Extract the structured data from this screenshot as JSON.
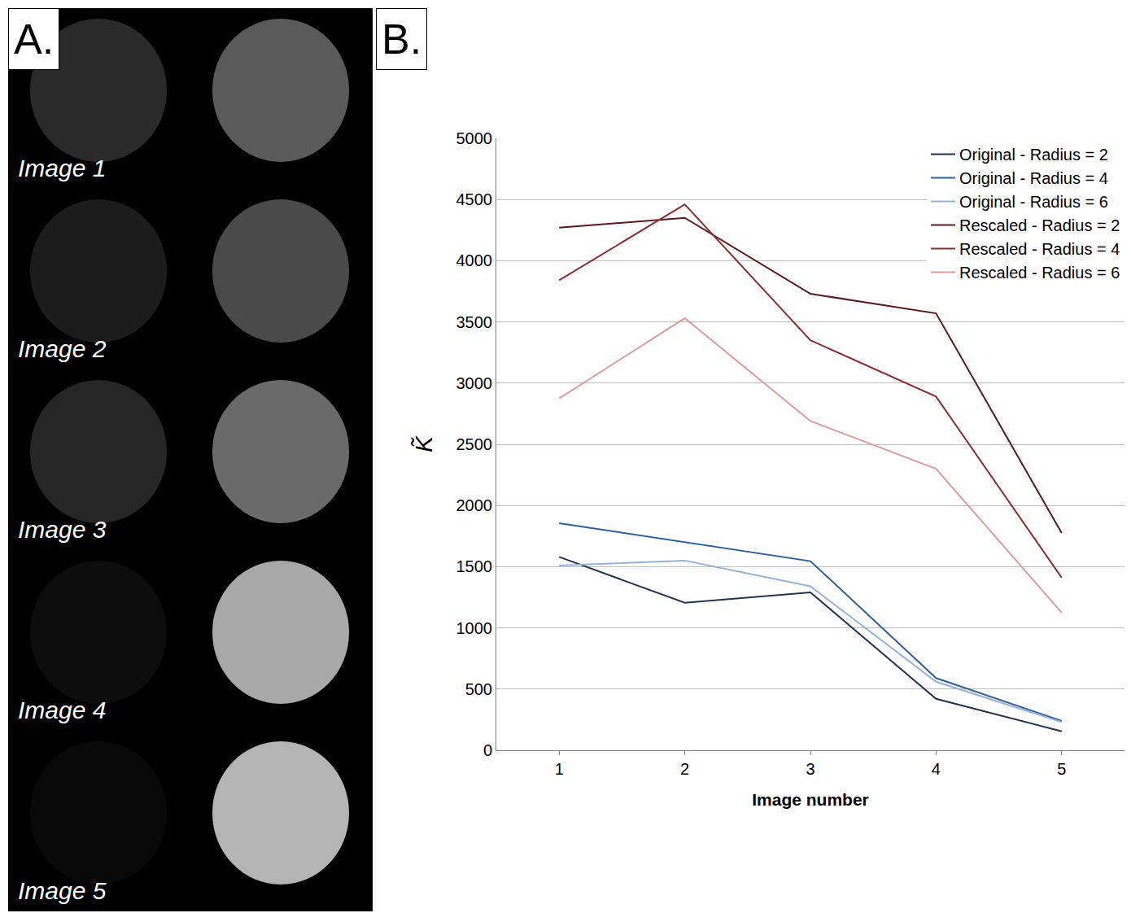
{
  "panels": {
    "A": {
      "label": "A.",
      "image_labels": [
        "Image 1",
        "Image 2",
        "Image 3",
        "Image 4",
        "Image 5"
      ]
    },
    "B": {
      "label": "B."
    }
  },
  "chart_data": {
    "type": "line",
    "x_label": "Image number",
    "y_label": "K̃",
    "x": [
      1,
      2,
      3,
      4,
      5
    ],
    "xlim": [
      0.5,
      5.5
    ],
    "xticks": [
      1,
      2,
      3,
      4,
      5
    ],
    "ylim": [
      0,
      5000
    ],
    "yticks": [
      0,
      500,
      1000,
      1500,
      2000,
      2500,
      3000,
      3500,
      4000,
      4500,
      5000
    ],
    "grid": true,
    "legend": "top right",
    "series": [
      {
        "name": "Original - Radius = 2",
        "color": "#1f3552",
        "values": [
          1580,
          1205,
          1290,
          420,
          155
        ]
      },
      {
        "name": "Original - Radius = 4",
        "color": "#30609a",
        "values": [
          1855,
          1700,
          1545,
          590,
          240
        ]
      },
      {
        "name": "Original - Radius = 6",
        "color": "#95b3d7",
        "values": [
          1510,
          1550,
          1340,
          560,
          230
        ]
      },
      {
        "name": "Rescaled - Radius = 2",
        "color": "#5a1a1a",
        "values": [
          4270,
          4350,
          3730,
          3570,
          1775
        ]
      },
      {
        "name": "Rescaled - Radius = 4",
        "color": "#8f2d2d",
        "values": [
          3840,
          4460,
          3350,
          2890,
          1410
        ]
      },
      {
        "name": "Rescaled - Radius = 6",
        "color": "#e09a9a",
        "values": [
          2875,
          3530,
          2690,
          2300,
          1125
        ]
      }
    ]
  }
}
